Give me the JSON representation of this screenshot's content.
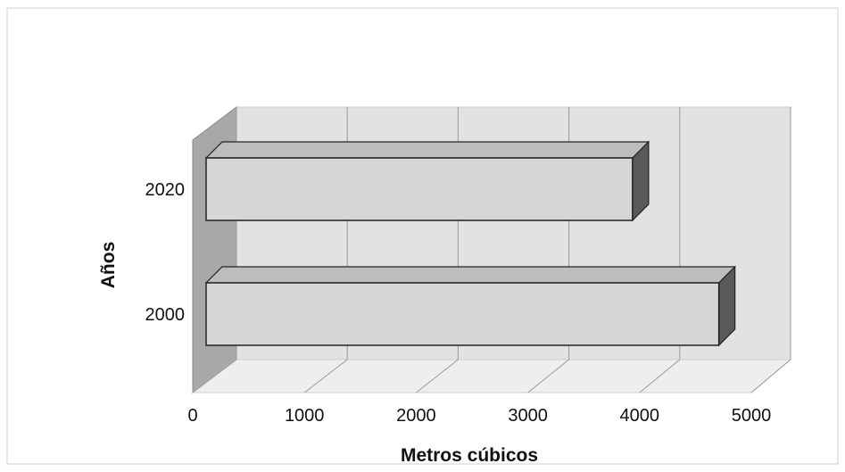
{
  "chart_data": {
    "type": "bar",
    "orientation": "horizontal",
    "style": "3d",
    "categories": [
      "2000",
      "2020"
    ],
    "values": [
      4750,
      3950
    ],
    "xlabel": "Metros cúbicos",
    "ylabel": "Años",
    "xlim": [
      0,
      5000
    ],
    "xticks": [
      "0",
      "1000",
      "2000",
      "3000",
      "4000",
      "5000"
    ],
    "grid": true,
    "legend": "none",
    "colors": {
      "bar_front": "#d6d6d6",
      "bar_top": "#bdbdbd",
      "bar_side": "#5a5a5a",
      "wall": "#e2e2e2",
      "side_wall": "#a8a8a8",
      "floor": "#eeeeee",
      "gridline": "#9a9a9a",
      "border": "#cfcfcf"
    }
  }
}
